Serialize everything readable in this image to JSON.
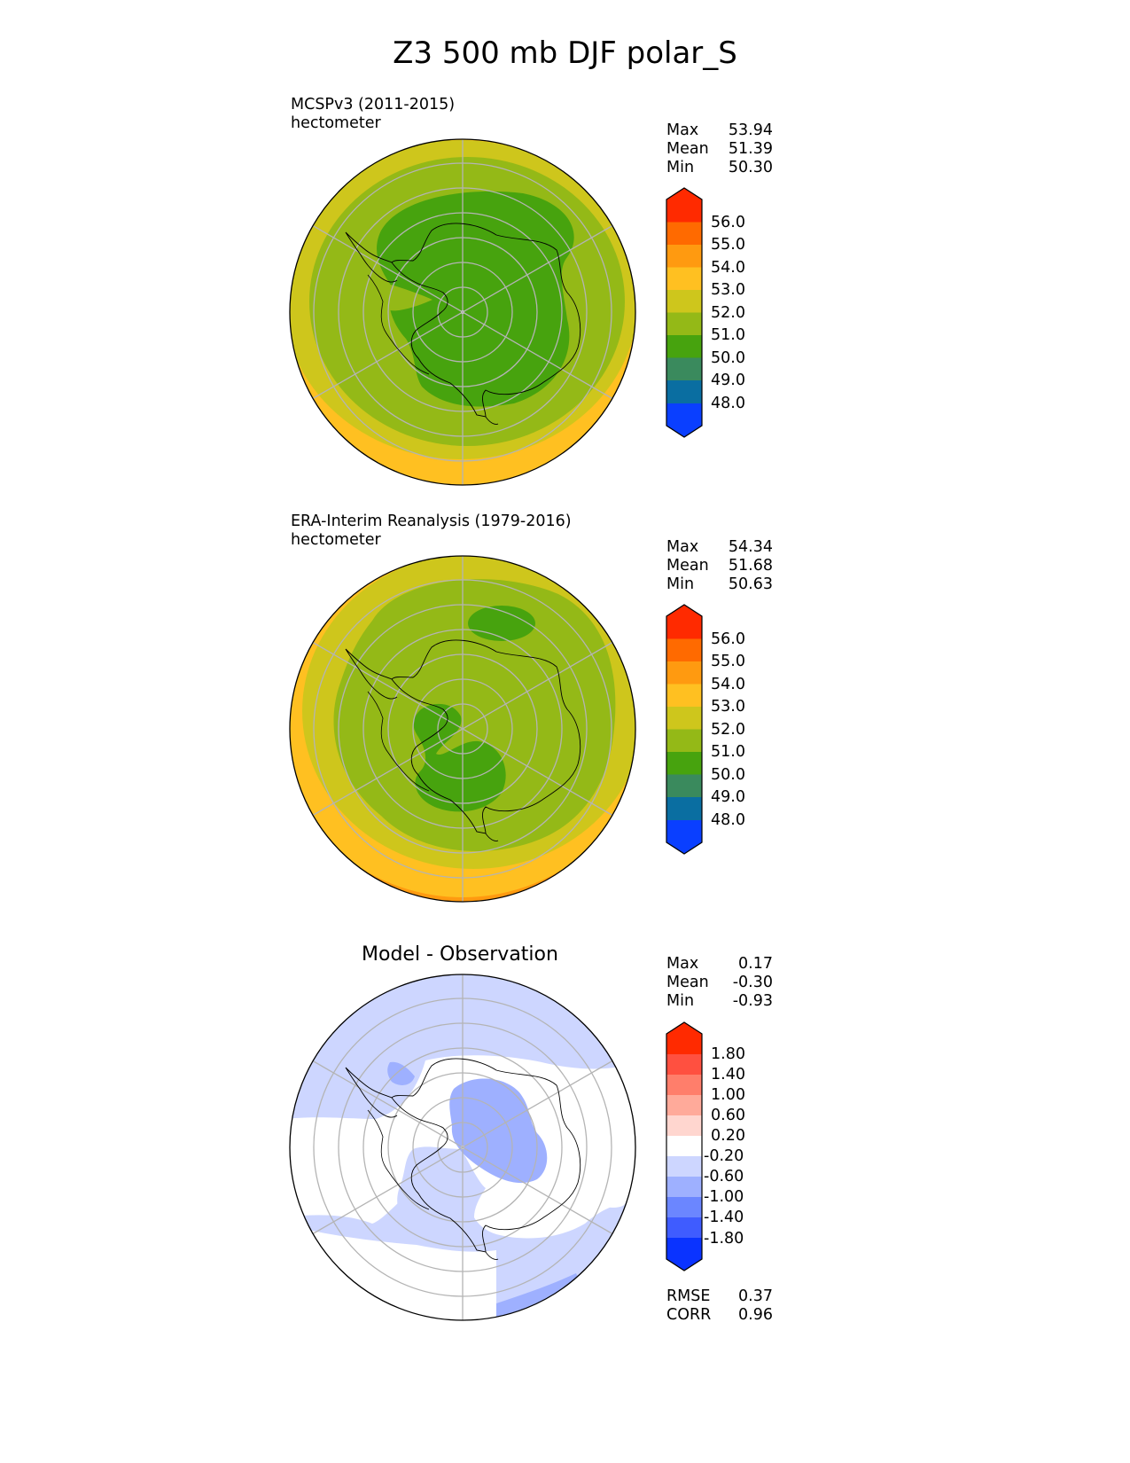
{
  "title": "Z3 500 mb DJF polar_S",
  "panels": [
    {
      "id": "model",
      "label_line1": "MCSPv3 (2011-2015)",
      "label_line2": "hectometer",
      "stats": {
        "max_label": "Max",
        "max": "53.94",
        "mean_label": "Mean",
        "mean": "51.39",
        "min_label": "Min",
        "min": "50.30"
      }
    },
    {
      "id": "obs",
      "label_line1": "ERA-Interim Reanalysis (1979-2016)",
      "label_line2": "hectometer",
      "stats": {
        "max_label": "Max",
        "max": "54.34",
        "mean_label": "Mean",
        "mean": "51.68",
        "min_label": "Min",
        "min": "50.63"
      }
    },
    {
      "id": "diff",
      "title": "Model - Observation",
      "stats": {
        "max_label": "Max",
        "max": "0.17",
        "mean_label": "Mean",
        "mean": "-0.30",
        "min_label": "Min",
        "min": "-0.93"
      },
      "metrics": {
        "rmse_label": "RMSE",
        "rmse": "0.37",
        "corr_label": "CORR",
        "corr": "0.96"
      }
    }
  ],
  "colorbars": {
    "field": {
      "ticks": [
        "56.0",
        "55.0",
        "54.0",
        "53.0",
        "52.0",
        "51.0",
        "50.0",
        "49.0",
        "48.0"
      ],
      "colors_top_to_bottom": [
        "#ff2a00",
        "#ff6a00",
        "#ff9a10",
        "#ffc021",
        "#cec61c",
        "#94b917",
        "#47a30e",
        "#3a8a5d",
        "#0a6ea1",
        "#0a3fff"
      ]
    },
    "diff": {
      "ticks": [
        "1.80",
        "1.40",
        "1.00",
        "0.60",
        "0.20",
        "-0.20",
        "-0.60",
        "-1.00",
        "-1.40",
        "-1.80"
      ],
      "colors_top_to_bottom": [
        "#ff2a00",
        "#ff5040",
        "#ff7e6b",
        "#ffaa9a",
        "#ffd6cf",
        "#ffffff",
        "#cdd6ff",
        "#9eb0ff",
        "#6b86ff",
        "#3f5cff",
        "#0a33ff"
      ]
    }
  },
  "map_colors": {
    "land_outline": "#000000",
    "grid": "#b4b4b4"
  }
}
